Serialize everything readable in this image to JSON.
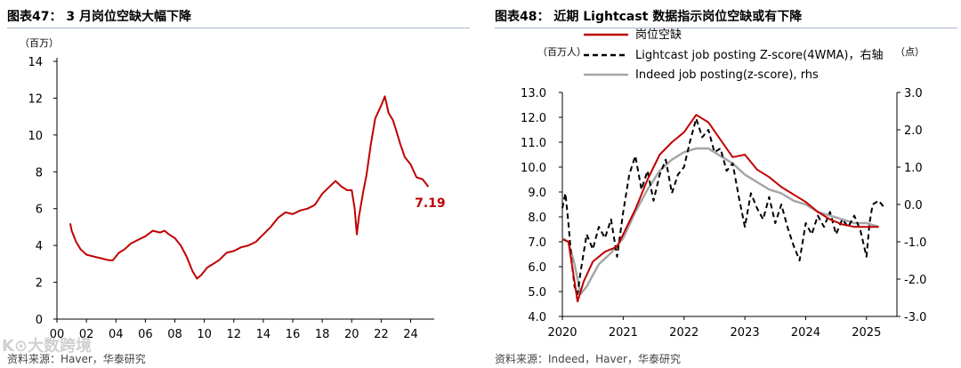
{
  "watermark": "K⊙大数跨境",
  "colors": {
    "red": "#c00000",
    "black": "#000000",
    "gray": "#a6a6a6",
    "rule": "#a9b7c9"
  },
  "chart_data": [
    {
      "type": "line",
      "title": "图表47： 3 月岗位空缺大幅下降",
      "unit_label": "（百万）",
      "source": "资料来源：Haver，华泰研究",
      "x_ticks": [
        "00",
        "02",
        "04",
        "06",
        "08",
        "10",
        "12",
        "14",
        "16",
        "18",
        "20",
        "22",
        "24"
      ],
      "x_tick_values": [
        2000,
        2002,
        2004,
        2006,
        2008,
        2010,
        2012,
        2014,
        2016,
        2018,
        2020,
        2022,
        2024
      ],
      "xlim": [
        2000,
        2025.6
      ],
      "ylim": [
        0,
        14
      ],
      "y_ticks": [
        0,
        2,
        4,
        6,
        8,
        10,
        12,
        14
      ],
      "end_label": "7.19",
      "series": [
        {
          "name": "岗位空缺",
          "x": [
            2000.9,
            2001.0,
            2001.3,
            2001.6,
            2002.0,
            2002.5,
            2003.0,
            2003.5,
            2003.8,
            2004.2,
            2004.6,
            2005.0,
            2005.5,
            2006.0,
            2006.5,
            2007.0,
            2007.3,
            2007.6,
            2008.0,
            2008.4,
            2008.8,
            2009.2,
            2009.5,
            2009.8,
            2010.2,
            2010.6,
            2011.0,
            2011.5,
            2012.0,
            2012.5,
            2013.0,
            2013.5,
            2014.0,
            2014.5,
            2015.0,
            2015.5,
            2016.0,
            2016.5,
            2017.0,
            2017.5,
            2018.0,
            2018.5,
            2018.9,
            2019.3,
            2019.7,
            2020.0,
            2020.2,
            2020.35,
            2020.5,
            2020.8,
            2021.0,
            2021.3,
            2021.6,
            2022.0,
            2022.25,
            2022.5,
            2022.8,
            2023.0,
            2023.3,
            2023.6,
            2024.0,
            2024.4,
            2024.8,
            2025.1,
            2025.2
          ],
          "values": [
            5.2,
            4.8,
            4.2,
            3.8,
            3.5,
            3.4,
            3.3,
            3.2,
            3.2,
            3.6,
            3.8,
            4.1,
            4.3,
            4.5,
            4.8,
            4.7,
            4.8,
            4.6,
            4.4,
            4.0,
            3.4,
            2.6,
            2.2,
            2.4,
            2.8,
            3.0,
            3.2,
            3.6,
            3.7,
            3.9,
            4.0,
            4.2,
            4.6,
            5.0,
            5.5,
            5.8,
            5.7,
            5.9,
            6.0,
            6.2,
            6.8,
            7.2,
            7.5,
            7.2,
            7.0,
            7.0,
            6.0,
            4.6,
            5.6,
            7.0,
            7.8,
            9.5,
            10.9,
            11.6,
            12.1,
            11.2,
            10.8,
            10.3,
            9.5,
            8.8,
            8.4,
            7.7,
            7.6,
            7.3,
            7.19
          ],
          "color": "#c00000"
        }
      ]
    },
    {
      "type": "line",
      "title": "图表48： 近期 Lightcast 数据指示岗位空缺或有下降",
      "unit_label_left": "（百万人）",
      "unit_label_right": "（点）",
      "source": "资料来源：Indeed，Haver，华泰研究",
      "x_ticks": [
        "2020",
        "2021",
        "2022",
        "2023",
        "2024",
        "2025"
      ],
      "x_tick_values": [
        2020,
        2021,
        2022,
        2023,
        2024,
        2025
      ],
      "xlim": [
        2020,
        2025.5
      ],
      "ylim": [
        4.0,
        13.0
      ],
      "y_ticks": [
        "4.0",
        "5.0",
        "6.0",
        "7.0",
        "8.0",
        "9.0",
        "10.0",
        "11.0",
        "12.0",
        "13.0"
      ],
      "y2lim": [
        -3.0,
        3.0
      ],
      "y2_ticks": [
        "-3.0",
        "-2.0",
        "-1.0",
        "0.0",
        "1.0",
        "2.0",
        "3.0"
      ],
      "legend": [
        "岗位空缺",
        "Lightcast job posting Z-score(4WMA)，右轴",
        "Indeed job posting(z-score), rhs"
      ],
      "series": [
        {
          "name": "岗位空缺",
          "axis": "left",
          "color": "#c00000",
          "x": [
            2020.0,
            2020.1,
            2020.25,
            2020.35,
            2020.5,
            2020.7,
            2020.9,
            2021.0,
            2021.2,
            2021.4,
            2021.6,
            2021.8,
            2022.0,
            2022.2,
            2022.4,
            2022.6,
            2022.8,
            2023.0,
            2023.2,
            2023.4,
            2023.6,
            2023.8,
            2024.0,
            2024.2,
            2024.4,
            2024.6,
            2024.8,
            2025.0,
            2025.2
          ],
          "values": [
            7.1,
            7.0,
            4.6,
            5.4,
            6.2,
            6.6,
            6.8,
            7.3,
            8.3,
            9.5,
            10.5,
            11.0,
            11.4,
            12.1,
            11.8,
            11.1,
            10.4,
            10.5,
            9.9,
            9.6,
            9.2,
            8.9,
            8.6,
            8.2,
            7.9,
            7.7,
            7.6,
            7.6,
            7.6
          ]
        },
        {
          "name": "Lightcast job posting Z-score(4WMA)，右轴",
          "axis": "right",
          "color": "#000000",
          "x": [
            2020.0,
            2020.05,
            2020.1,
            2020.15,
            2020.2,
            2020.25,
            2020.3,
            2020.35,
            2020.4,
            2020.5,
            2020.6,
            2020.7,
            2020.8,
            2020.9,
            2021.0,
            2021.1,
            2021.2,
            2021.3,
            2021.4,
            2021.5,
            2021.6,
            2021.7,
            2021.8,
            2021.9,
            2022.0,
            2022.1,
            2022.2,
            2022.3,
            2022.4,
            2022.5,
            2022.6,
            2022.7,
            2022.8,
            2022.9,
            2023.0,
            2023.1,
            2023.2,
            2023.3,
            2023.4,
            2023.5,
            2023.6,
            2023.7,
            2023.8,
            2023.9,
            2024.0,
            2024.1,
            2024.2,
            2024.3,
            2024.4,
            2024.5,
            2024.6,
            2024.7,
            2024.8,
            2024.9,
            2025.0,
            2025.05,
            2025.1,
            2025.2,
            2025.3
          ],
          "values": [
            -0.1,
            0.3,
            -0.5,
            -1.5,
            -2.2,
            -2.4,
            -1.8,
            -1.3,
            -0.8,
            -1.2,
            -0.6,
            -0.9,
            -0.4,
            -1.4,
            -0.2,
            0.8,
            1.3,
            0.4,
            0.9,
            0.1,
            0.8,
            1.2,
            0.3,
            0.8,
            1.0,
            1.7,
            2.3,
            1.8,
            2.0,
            1.4,
            1.5,
            0.9,
            1.1,
            0.2,
            -0.6,
            0.3,
            -0.1,
            -0.4,
            0.2,
            -0.5,
            0.0,
            -0.6,
            -1.1,
            -1.5,
            -0.5,
            -0.8,
            -0.3,
            -0.6,
            -0.2,
            -0.8,
            -0.4,
            -0.6,
            -0.3,
            -0.7,
            -1.4,
            -0.5,
            0.0,
            0.1,
            -0.1
          ]
        },
        {
          "name": "Indeed job posting(z-score), rhs",
          "axis": "right",
          "color": "#a6a6a6",
          "x": [
            2020.0,
            2020.1,
            2020.2,
            2020.3,
            2020.4,
            2020.6,
            2020.8,
            2021.0,
            2021.2,
            2021.4,
            2021.6,
            2021.8,
            2022.0,
            2022.2,
            2022.4,
            2022.6,
            2022.8,
            2023.0,
            2023.2,
            2023.4,
            2023.6,
            2023.8,
            2024.0,
            2024.2,
            2024.4,
            2024.6,
            2024.8,
            2025.0,
            2025.2
          ],
          "values": [
            -0.9,
            -1.0,
            -1.6,
            -2.4,
            -2.2,
            -1.6,
            -1.3,
            -0.9,
            -0.2,
            0.4,
            0.9,
            1.2,
            1.4,
            1.5,
            1.5,
            1.3,
            1.1,
            0.8,
            0.6,
            0.4,
            0.3,
            0.1,
            0.0,
            -0.2,
            -0.3,
            -0.4,
            -0.5,
            -0.5,
            -0.6
          ]
        }
      ]
    }
  ]
}
